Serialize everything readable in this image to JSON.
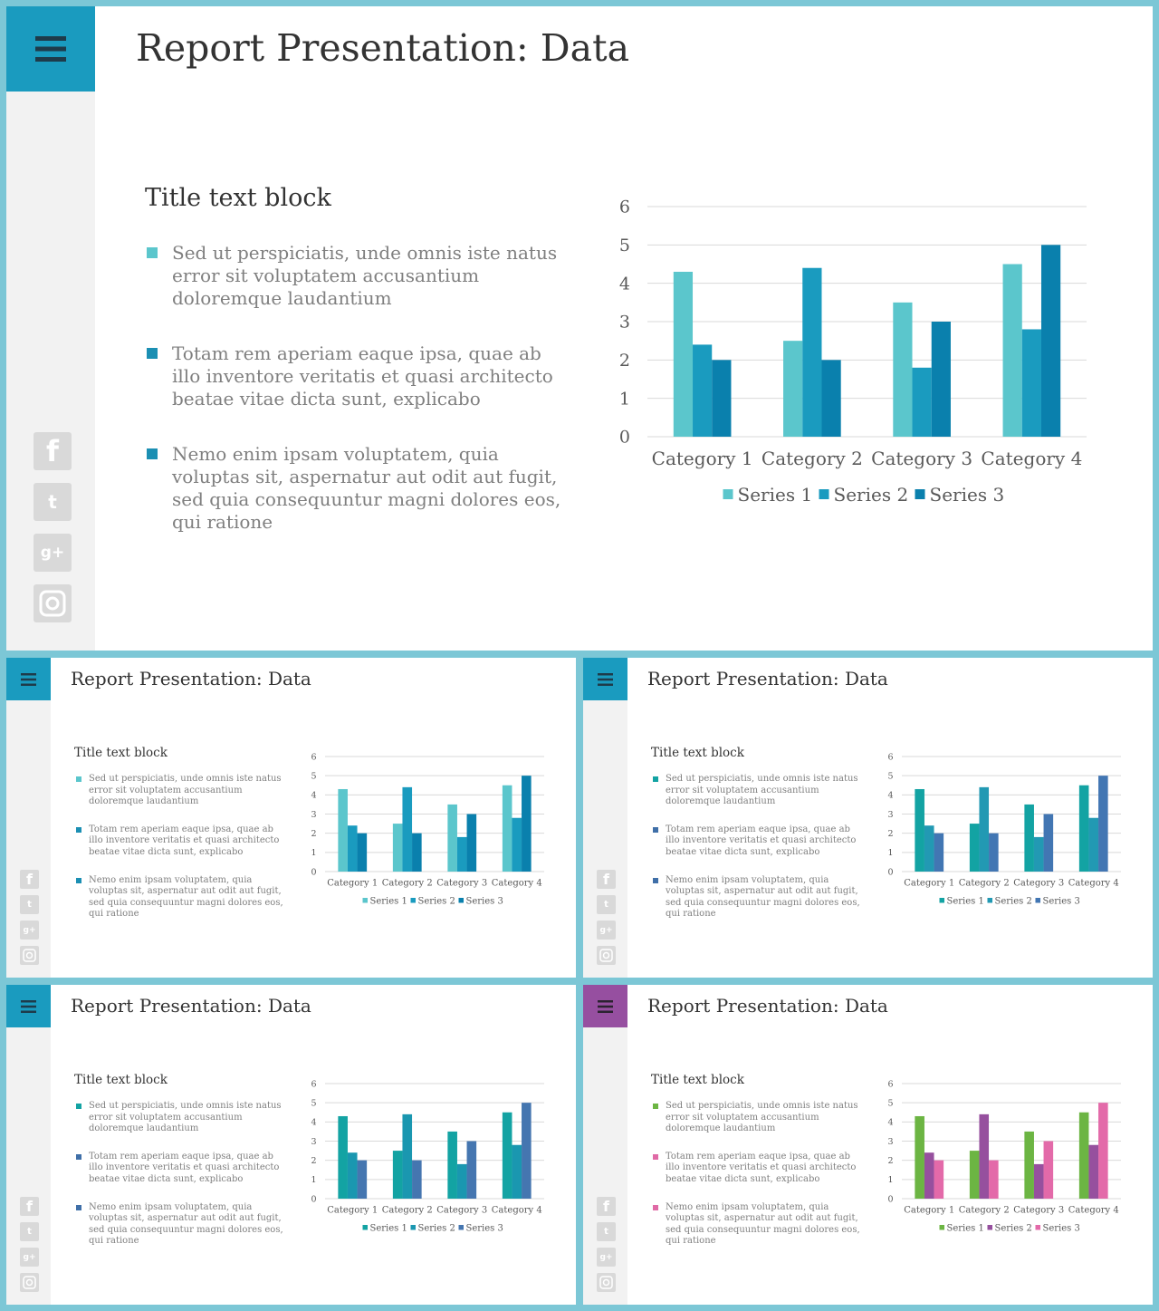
{
  "deck": {
    "title": "Report Presentation: Data",
    "block_title": "Title text block",
    "bullets": [
      "Sed ut perspiciatis, unde omnis iste natus error sit voluptatem accusantium doloremque laudantium",
      "Totam rem aperiam eaque ipsa, quae ab illo inventore veritatis et quasi architecto beatae vitae dicta sunt, explicabo",
      "Nemo enim ipsam voluptatem, quia voluptas sit, aspernatur aut odit aut fugit, sed quia consequuntur magni dolores eos, qui ratione"
    ],
    "social_icons": [
      "facebook-icon",
      "twitter-icon",
      "google-plus-icon",
      "instagram-icon"
    ],
    "menu_icon": "hamburger-menu-icon"
  },
  "chart_data": {
    "type": "bar",
    "categories": [
      "Category 1",
      "Category 2",
      "Category 3",
      "Category 4"
    ],
    "series": [
      {
        "name": "Series 1",
        "values": [
          4.3,
          2.5,
          3.5,
          4.5
        ]
      },
      {
        "name": "Series 2",
        "values": [
          2.4,
          4.4,
          1.8,
          2.8
        ]
      },
      {
        "name": "Series 3",
        "values": [
          2.0,
          2.0,
          3.0,
          5.0
        ]
      }
    ],
    "ylim": [
      0,
      6
    ],
    "yticks": [
      "0",
      "1",
      "2",
      "3",
      "4",
      "5",
      "6"
    ],
    "grid": true,
    "legend": "bottom"
  },
  "themes": [
    {
      "name": "light-teal",
      "accent": "#1a9bbf",
      "bullets": [
        "#5bc6cc",
        "#1b8fb3",
        "#1b8fb3"
      ],
      "series": [
        "#5bc6cc",
        "#1a9bbf",
        "#0a80ad"
      ]
    },
    {
      "name": "teal-blue",
      "accent": "#1a9bbf",
      "bullets": [
        "#13a3a3",
        "#3f6fa8",
        "#3f6fa8"
      ],
      "series": [
        "#13a3a3",
        "#2299b3",
        "#4276b3"
      ]
    },
    {
      "name": "teal-navy",
      "accent": "#1a9bbf",
      "bullets": [
        "#13a3a3",
        "#3f6fa8",
        "#3f6fa8"
      ],
      "series": [
        "#13a3a3",
        "#1a97b0",
        "#4576b0"
      ]
    },
    {
      "name": "green-purple-pink",
      "accent": "#964fa0",
      "bullets": [
        "#6cb543",
        "#e06aa6",
        "#e06aa6"
      ],
      "series": [
        "#6cb543",
        "#96509e",
        "#e36aa9"
      ]
    }
  ]
}
